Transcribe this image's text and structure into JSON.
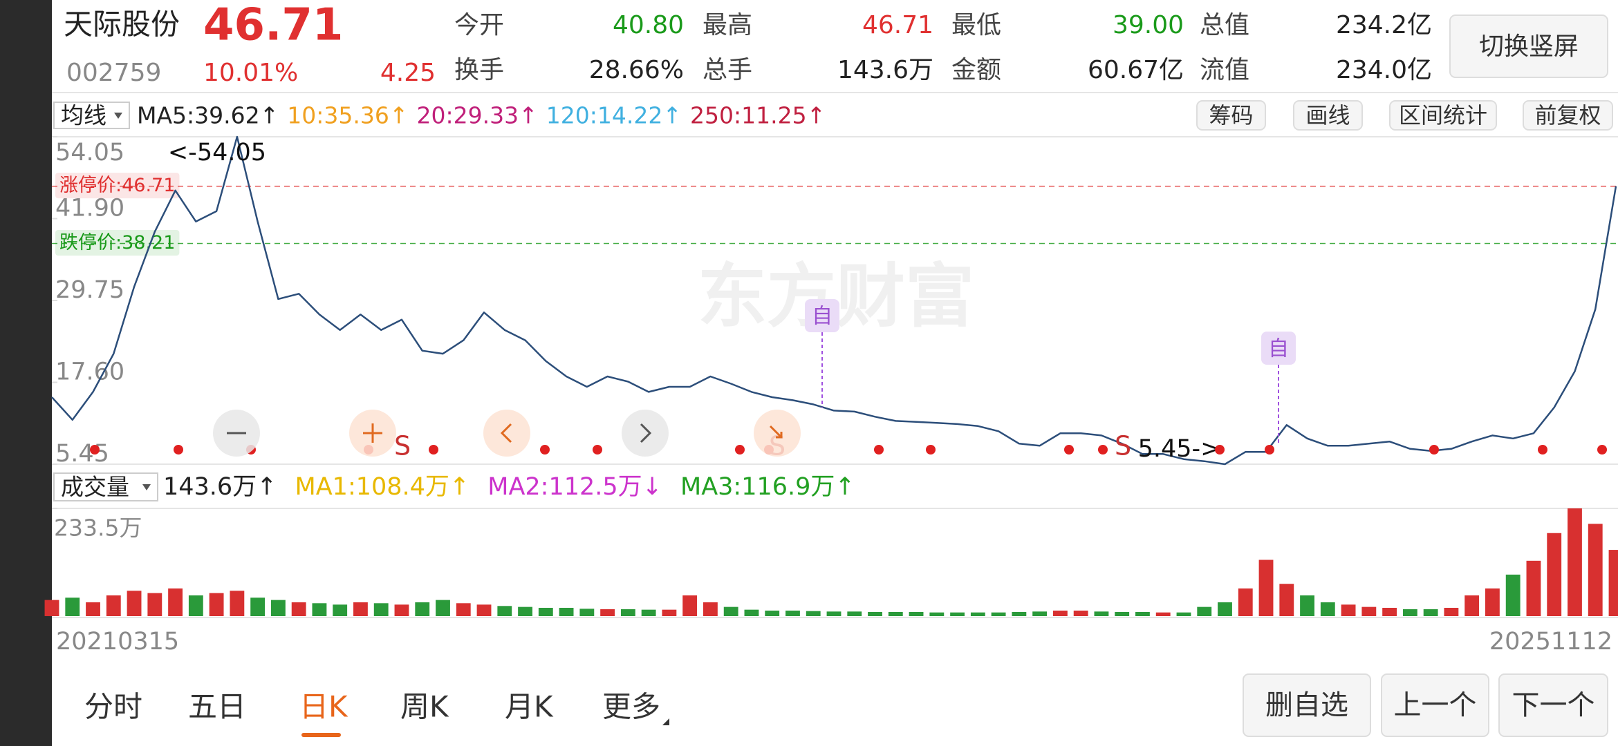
{
  "header": {
    "name": "天际股份",
    "price": "46.71",
    "code": "002759",
    "change_pct": "10.01%",
    "change": "4.25",
    "up_color": "#e03030",
    "stats": [
      {
        "label": "今开",
        "value": "40.80",
        "color": "#1a9a1a"
      },
      {
        "label": "最高",
        "value": "46.71",
        "color": "#e03030"
      },
      {
        "label": "最低",
        "value": "39.00",
        "color": "#1a9a1a"
      },
      {
        "label": "总值",
        "value": "234.2亿",
        "color": "#222222"
      },
      {
        "label": "换手",
        "value": "28.66%",
        "color": "#222222"
      },
      {
        "label": "总手",
        "value": "143.6万",
        "color": "#222222"
      },
      {
        "label": "金额",
        "value": "60.67亿",
        "color": "#222222"
      },
      {
        "label": "流值",
        "value": "234.0亿",
        "color": "#222222"
      }
    ],
    "toggle_button": "切换竖屏"
  },
  "ma_bar": {
    "selector": "均线",
    "items": [
      {
        "text": "MA5:39.62↑",
        "color": "#222222"
      },
      {
        "text": "10:35.36↑",
        "color": "#f0a020"
      },
      {
        "text": "20:29.33↑",
        "color": "#c0207a"
      },
      {
        "text": "120:14.22↑",
        "color": "#40b0e0"
      },
      {
        "text": "250:11.25↑",
        "color": "#c02040"
      }
    ],
    "tools": [
      "筹码",
      "画线",
      "区间统计",
      "前复权"
    ]
  },
  "price_chart": {
    "type": "line",
    "color": "#2c4e7a",
    "watermark": "东方财富",
    "ylim": [
      5.45,
      54.05
    ],
    "yticks": [
      54.05,
      {
        "value": 41.9,
        "label": "41.90"
      },
      29.75,
      {
        "value": 17.6,
        "label": "17.60"
      },
      5.45
    ],
    "limit_lines": [
      {
        "label": "涨停价:46.71",
        "value": 46.71,
        "color": "#e03030"
      },
      {
        "label": "跌停价:38.21",
        "value": 38.21,
        "color": "#1a9a1a"
      }
    ],
    "max_label": "<-54.05",
    "min_label": "5.45->",
    "signal_label": "S",
    "watch_marker": "自",
    "values": [
      15.4,
      12.03,
      16.17,
      21.84,
      31.81,
      39.94,
      46.07,
      41.47,
      43.01,
      54.05,
      41.47,
      29.97,
      30.74,
      27.67,
      25.37,
      27.67,
      25.37,
      26.9,
      22.3,
      21.84,
      23.84,
      27.98,
      25.37,
      23.84,
      20.77,
      18.47,
      16.93,
      18.47,
      17.7,
      16.17,
      16.93,
      16.93,
      18.47,
      17.39,
      16.17,
      15.4,
      14.94,
      14.33,
      13.41,
      13.25,
      12.49,
      11.87,
      11.72,
      11.57,
      11.41,
      11.11,
      10.34,
      8.5,
      8.19,
      10.03,
      10.03,
      9.72,
      8.5,
      6.96,
      6.96,
      6.2,
      5.89,
      5.45,
      7.27,
      7.27,
      11.26,
      9.26,
      8.19,
      8.19,
      8.5,
      8.81,
      7.73,
      7.42,
      7.73,
      8.81,
      9.72,
      9.26,
      10.03,
      13.87,
      19.23,
      28.44,
      46.71
    ]
  },
  "volume_bar": {
    "selector": "成交量",
    "items": [
      {
        "text": "143.6万↑",
        "color": "#222222"
      },
      {
        "text": "MA1:108.4万↑",
        "color": "#e8b800"
      },
      {
        "text": "MA2:112.5万↓",
        "color": "#cc33cc"
      },
      {
        "text": "MA3:116.9万↑",
        "color": "#22a022"
      }
    ]
  },
  "volume_chart": {
    "type": "bar",
    "up_color": "#d83030",
    "down_color": "#2a9a3a",
    "ylim": [
      0,
      233.5
    ],
    "yticks": [
      {
        "value": 233.5,
        "label": "233.5万"
      }
    ],
    "values": [
      35,
      40,
      30,
      45,
      55,
      50,
      60,
      45,
      50,
      55,
      40,
      35,
      30,
      28,
      25,
      30,
      28,
      25,
      30,
      35,
      28,
      25,
      22,
      20,
      18,
      18,
      16,
      15,
      15,
      14,
      14,
      45,
      30,
      20,
      14,
      12,
      12,
      11,
      10,
      10,
      9,
      9,
      9,
      8,
      8,
      8,
      8,
      9,
      10,
      12,
      12,
      10,
      9,
      9,
      8,
      8,
      20,
      30,
      60,
      122,
      70,
      45,
      30,
      25,
      20,
      18,
      15,
      15,
      18,
      45,
      60,
      90,
      120,
      180,
      233.5,
      200,
      143.6
    ]
  },
  "dates": [
    "20210315",
    "20251112"
  ],
  "tabs": [
    "分时",
    "五日",
    "日K",
    "周K",
    "月K",
    "更多"
  ],
  "active_tab": 2,
  "active_color": "#e8651a",
  "buttons": [
    "删自选",
    "上一个",
    "下一个"
  ]
}
